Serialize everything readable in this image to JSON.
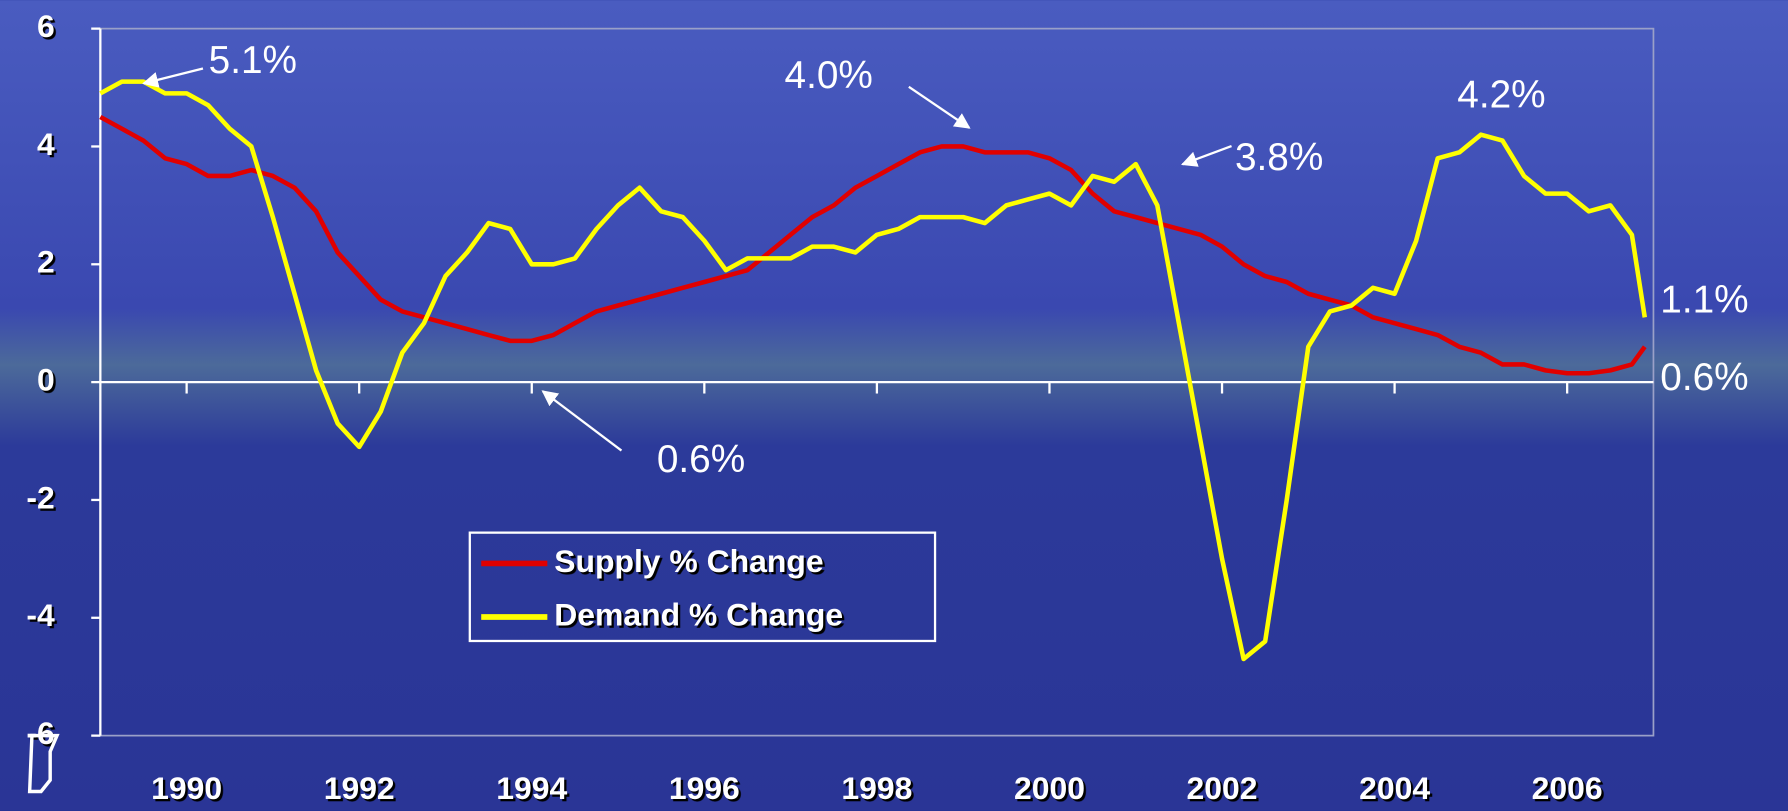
{
  "chart_data": {
    "type": "line",
    "x": [
      1989.0,
      1989.25,
      1989.5,
      1989.75,
      1990.0,
      1990.25,
      1990.5,
      1990.75,
      1991.0,
      1991.25,
      1991.5,
      1991.75,
      1992.0,
      1992.25,
      1992.5,
      1992.75,
      1993.0,
      1993.25,
      1993.5,
      1993.75,
      1994.0,
      1994.25,
      1994.5,
      1994.75,
      1995.0,
      1995.25,
      1995.5,
      1995.75,
      1996.0,
      1996.25,
      1996.5,
      1996.75,
      1997.0,
      1997.25,
      1997.5,
      1997.75,
      1998.0,
      1998.25,
      1998.5,
      1998.75,
      1999.0,
      1999.25,
      1999.5,
      1999.75,
      2000.0,
      2000.25,
      2000.5,
      2000.75,
      2001.0,
      2001.25,
      2001.5,
      2001.75,
      2002.0,
      2002.25,
      2002.5,
      2002.75,
      2003.0,
      2003.25,
      2003.5,
      2003.75,
      2004.0,
      2004.25,
      2004.5,
      2004.75,
      2005.0,
      2005.25,
      2005.5,
      2005.75,
      2006.0,
      2006.25,
      2006.5,
      2006.75,
      2006.9
    ],
    "series": [
      {
        "name": "Supply % Change",
        "color": "#e00000",
        "values": [
          4.5,
          4.3,
          4.1,
          3.8,
          3.7,
          3.5,
          3.5,
          3.6,
          3.5,
          3.3,
          2.9,
          2.2,
          1.8,
          1.4,
          1.2,
          1.1,
          1.0,
          0.9,
          0.8,
          0.7,
          0.7,
          0.8,
          1.0,
          1.2,
          1.3,
          1.4,
          1.5,
          1.6,
          1.7,
          1.8,
          1.9,
          2.2,
          2.5,
          2.8,
          3.0,
          3.3,
          3.5,
          3.7,
          3.9,
          4.0,
          4.0,
          3.9,
          3.9,
          3.9,
          3.8,
          3.6,
          3.2,
          2.9,
          2.8,
          2.7,
          2.6,
          2.5,
          2.3,
          2.0,
          1.8,
          1.7,
          1.5,
          1.4,
          1.3,
          1.1,
          1.0,
          0.9,
          0.8,
          0.6,
          0.5,
          0.3,
          0.3,
          0.2,
          0.15,
          0.15,
          0.2,
          0.3,
          0.6
        ]
      },
      {
        "name": "Demand % Change",
        "color": "#ffff00",
        "values": [
          4.9,
          5.1,
          5.1,
          4.9,
          4.9,
          4.7,
          4.3,
          4.0,
          2.8,
          1.5,
          0.2,
          -0.7,
          -1.1,
          -0.5,
          0.5,
          1.0,
          1.8,
          2.2,
          2.7,
          2.6,
          2.0,
          2.0,
          2.1,
          2.6,
          3.0,
          3.3,
          2.9,
          2.8,
          2.4,
          1.9,
          2.1,
          2.1,
          2.1,
          2.3,
          2.3,
          2.2,
          2.5,
          2.6,
          2.8,
          2.8,
          2.8,
          2.7,
          3.0,
          3.1,
          3.2,
          3.0,
          3.5,
          3.4,
          3.7,
          3.0,
          1.0,
          -1.0,
          -3.0,
          -4.7,
          -4.4,
          -2.0,
          0.6,
          1.2,
          1.3,
          1.6,
          1.5,
          2.4,
          3.8,
          3.9,
          4.2,
          4.1,
          3.5,
          3.2,
          3.2,
          2.9,
          3.0,
          2.5,
          1.1
        ]
      }
    ],
    "xlim": [
      1989,
      2007
    ],
    "xticks": [
      1990,
      1992,
      1994,
      1996,
      1998,
      2000,
      2002,
      2004,
      2006
    ],
    "ylim": [
      -6,
      6
    ],
    "yticks": [
      -6,
      -4,
      -2,
      0,
      2,
      4,
      6
    ],
    "legend": "lower center",
    "annotations": [
      "5.1%",
      "4.0%",
      "3.8%",
      "0.6%",
      "4.2%",
      "1.1%",
      "0.6%"
    ]
  }
}
